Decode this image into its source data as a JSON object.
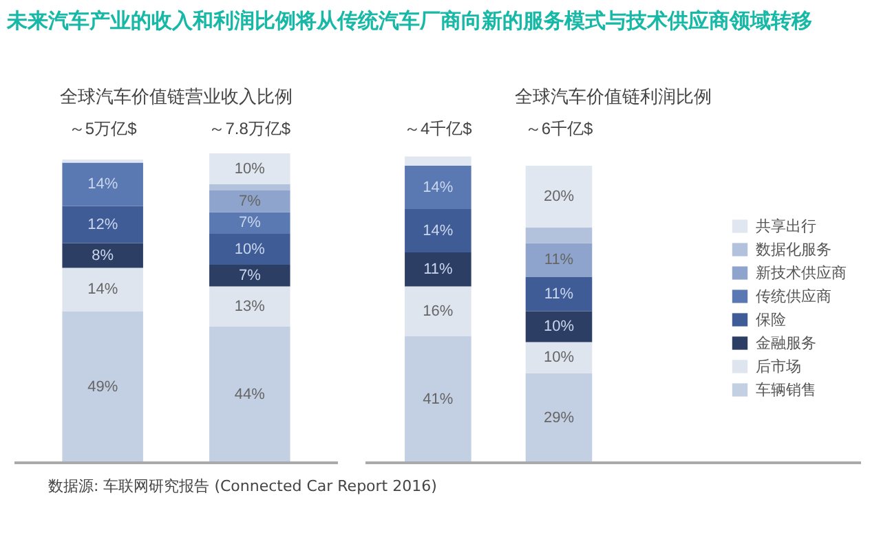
{
  "chart_data": [
    {
      "type": "bar",
      "stacked": true,
      "title": "全球汽车价值链营业收入比例",
      "categories": [
        "～5万亿$",
        "～7.8万亿$"
      ],
      "annotations": [
        "未来汽车产业的收入和利润比例将从传统汽车厂商向新的服务模式与技术供应商领域转移",
        "数据源: 车联网研究报告 (Connected Car Report 2016)"
      ],
      "series": [
        {
          "color": "#c3cfe3",
          "values": [
            49,
            44
          ],
          "value_labels": [
            "49%",
            "44%"
          ]
        },
        {
          "color": "#dfe5ef",
          "values": [
            14,
            13
          ],
          "value_labels": [
            "14%",
            "13%"
          ]
        },
        {
          "color": "#2c3e63",
          "values": [
            8,
            7
          ],
          "value_labels": [
            "8%",
            "7%"
          ]
        },
        {
          "color": "#3f5c96",
          "values": [
            12,
            10
          ],
          "value_labels": [
            "12%",
            "10%"
          ]
        },
        {
          "color": "#5a78b2",
          "values": [
            14,
            7
          ],
          "value_labels": [
            "14%",
            "7%"
          ]
        },
        {
          "color": "#8ea4cc",
          "values": [
            null,
            7
          ],
          "value_labels": [
            null,
            "7%"
          ]
        },
        {
          "color": "#b3c2dc",
          "values": [
            null,
            2
          ],
          "value_labels": [
            null,
            null
          ]
        },
        {
          "color": "#e1e7f0",
          "values": [
            1,
            10
          ],
          "value_labels": [
            null,
            "10%"
          ]
        }
      ]
    },
    {
      "type": "bar",
      "stacked": true,
      "title": "全球汽车价值链利润比例",
      "categories": [
        "～4千亿$",
        "～6千亿$"
      ],
      "legend": "right",
      "series": [
        {
          "name": "车辆销售",
          "color": "#c3cfe3",
          "values": [
            41,
            29
          ],
          "value_labels": [
            "41%",
            "29%"
          ]
        },
        {
          "name": "后市场",
          "color": "#dfe5ef",
          "values": [
            16,
            10
          ],
          "value_labels": [
            "16%",
            "10%"
          ]
        },
        {
          "name": "金融服务",
          "color": "#2c3e63",
          "values": [
            11,
            10
          ],
          "value_labels": [
            "11%",
            "10%"
          ]
        },
        {
          "name": "保险",
          "color": "#3f5c96",
          "values": [
            14,
            11
          ],
          "value_labels": [
            "14%",
            "11%"
          ]
        },
        {
          "name": "传统供应商",
          "color": "#5a78b2",
          "values": [
            14,
            null
          ],
          "value_labels": [
            "14%",
            null
          ]
        },
        {
          "name": "新技术供应商",
          "color": "#8ea4cc",
          "values": [
            null,
            11
          ],
          "value_labels": [
            null,
            "11%"
          ]
        },
        {
          "name": "数据化服务",
          "color": "#b3c2dc",
          "values": [
            null,
            5
          ],
          "value_labels": [
            null,
            null
          ]
        },
        {
          "name": "共享出行",
          "color": "#e1e7f0",
          "values": [
            3,
            20
          ],
          "value_labels": [
            null,
            "20%"
          ]
        }
      ]
    }
  ]
}
